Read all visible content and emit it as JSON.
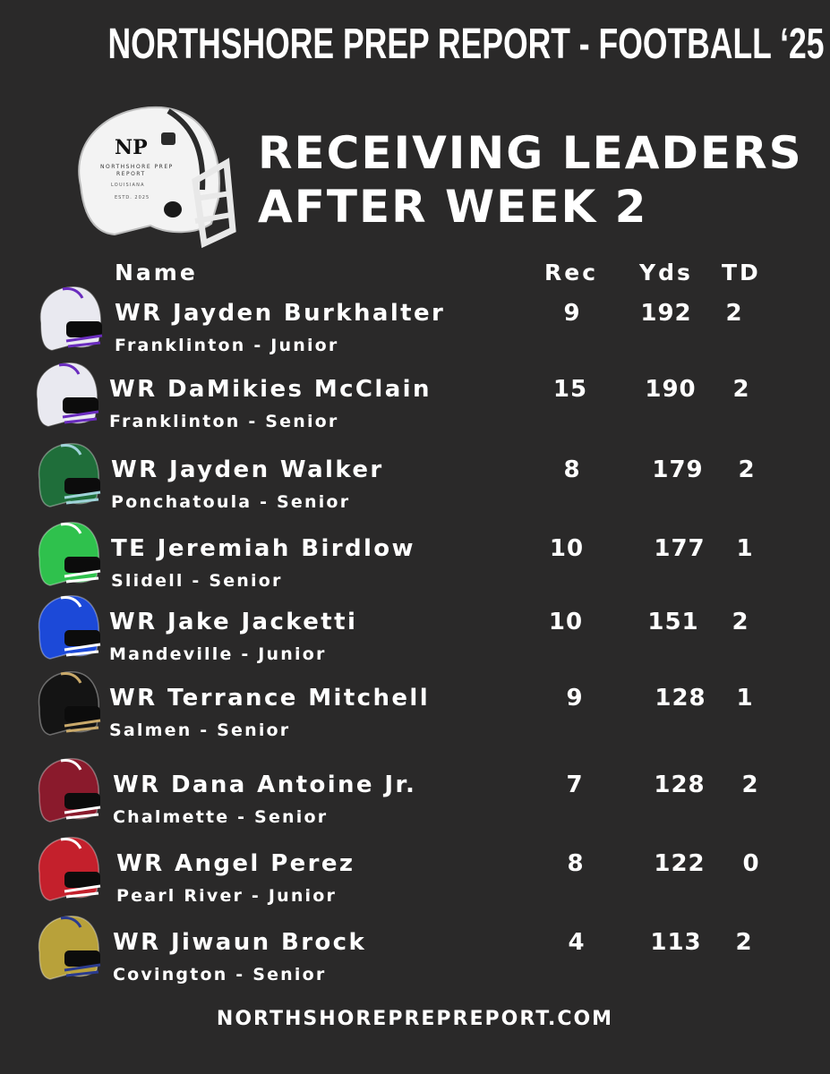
{
  "header": {
    "title": "NORTHSHORE PREP REPORT - FOOTBALL ‘25",
    "headline_line1": "RECEIVING LEADERS",
    "headline_line2": "AFTER WEEK 2"
  },
  "brand_helmet": {
    "logo_text": "NP",
    "sub_line1": "NORTHSHORE PREP",
    "sub_line2": "REPORT",
    "sub_line3": "LOUISIANA",
    "sub_line4": "ESTD. 2025"
  },
  "columns": {
    "name": "Name",
    "rec": "Rec",
    "yds": "Yds",
    "td": "TD"
  },
  "players": [
    {
      "name": "WR Jayden Burkhalter",
      "school": "Franklinton - Junior",
      "rec": "9",
      "yds": "192",
      "td": "2",
      "helmet_color": "#e9e9f0",
      "accent": "#6a2cbe"
    },
    {
      "name": "WR DaMikies McClain",
      "school": "Franklinton - Senior",
      "rec": "15",
      "yds": "190",
      "td": "2",
      "helmet_color": "#e9e9f0",
      "accent": "#6a2cbe"
    },
    {
      "name": "WR Jayden Walker",
      "school": "Ponchatoula - Senior",
      "rec": "8",
      "yds": "179",
      "td": "2",
      "helmet_color": "#1f6e3a",
      "accent": "#9fd3d9"
    },
    {
      "name": "TE Jeremiah Birdlow",
      "school": "Slidell - Senior",
      "rec": "10",
      "yds": "177",
      "td": "1",
      "helmet_color": "#2fc14d",
      "accent": "#ffffff"
    },
    {
      "name": "WR Jake Jacketti",
      "school": "Mandeville - Junior",
      "rec": "10",
      "yds": "151",
      "td": "2",
      "helmet_color": "#1c49d8",
      "accent": "#ffffff"
    },
    {
      "name": "WR Terrance Mitchell",
      "school": "Salmen - Senior",
      "rec": "9",
      "yds": "128",
      "td": "1",
      "helmet_color": "#141414",
      "accent": "#c9a96a"
    },
    {
      "name": "WR Dana Antoine Jr.",
      "school": "Chalmette - Senior",
      "rec": "7",
      "yds": "128",
      "td": "2",
      "helmet_color": "#8a1a2c",
      "accent": "#ffffff"
    },
    {
      "name": "WR Angel Perez",
      "school": "Pearl River - Junior",
      "rec": "8",
      "yds": "122",
      "td": "0",
      "helmet_color": "#c4202c",
      "accent": "#ffffff"
    },
    {
      "name": "WR Jiwaun Brock",
      "school": "Covington - Senior",
      "rec": "4",
      "yds": "113",
      "td": "2",
      "helmet_color": "#b8a13a",
      "accent": "#2a3b8f"
    }
  ],
  "footer": {
    "url": "NORTHSHOREPREPREPORT.COM"
  }
}
